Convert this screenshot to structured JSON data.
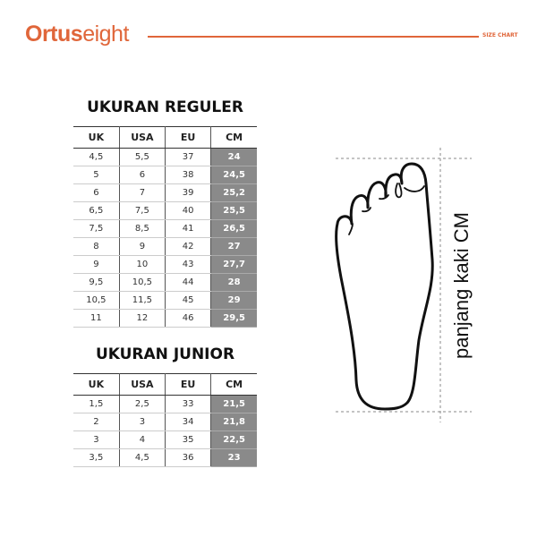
{
  "header": {
    "brand_bold": "Ortus",
    "brand_light": "eight",
    "section": "SIZE CHART",
    "accent_color": "#e0663a"
  },
  "regular": {
    "title": "UKURAN REGULER",
    "columns": [
      "UK",
      "USA",
      "EU",
      "CM"
    ],
    "rows": [
      [
        "4,5",
        "5,5",
        "37",
        "24"
      ],
      [
        "5",
        "6",
        "38",
        "24,5"
      ],
      [
        "6",
        "7",
        "39",
        "25,2"
      ],
      [
        "6,5",
        "7,5",
        "40",
        "25,5"
      ],
      [
        "7,5",
        "8,5",
        "41",
        "26,5"
      ],
      [
        "8",
        "9",
        "42",
        "27"
      ],
      [
        "9",
        "10",
        "43",
        "27,7"
      ],
      [
        "9,5",
        "10,5",
        "44",
        "28"
      ],
      [
        "10,5",
        "11,5",
        "45",
        "29"
      ],
      [
        "11",
        "12",
        "46",
        "29,5"
      ]
    ]
  },
  "junior": {
    "title": "UKURAN JUNIOR",
    "columns": [
      "UK",
      "USA",
      "EU",
      "CM"
    ],
    "rows": [
      [
        "1,5",
        "2,5",
        "33",
        "21,5"
      ],
      [
        "2",
        "3",
        "34",
        "21,8"
      ],
      [
        "3",
        "4",
        "35",
        "22,5"
      ],
      [
        "3,5",
        "4,5",
        "36",
        "23"
      ]
    ]
  },
  "diagram": {
    "measure_label": "panjang kaki CM",
    "icon": "foot-outline-icon"
  }
}
